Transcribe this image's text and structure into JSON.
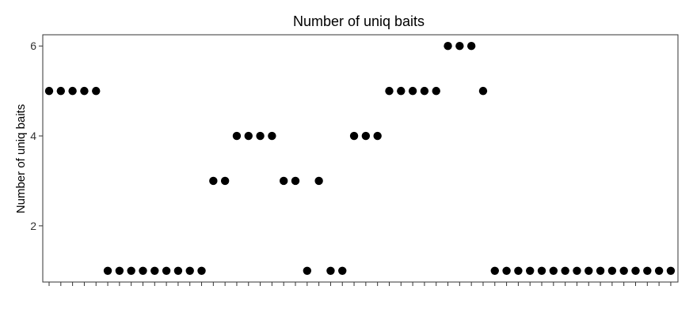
{
  "chart_data": {
    "type": "scatter",
    "title": "Number of uniq baits",
    "xlabel": "",
    "ylabel": "Number of uniq baits",
    "y_ticks": [
      2,
      4,
      6
    ],
    "y_tick_labels": [
      "2",
      "4",
      "6"
    ],
    "ylim": [
      0.75,
      6.25
    ],
    "grid": false,
    "legend": "none",
    "x_tick_labels_shown": false,
    "x": [
      1,
      2,
      3,
      4,
      5,
      6,
      7,
      8,
      9,
      10,
      11,
      12,
      13,
      14,
      15,
      16,
      17,
      18,
      19,
      20,
      21,
      22,
      23,
      24,
      25,
      26,
      27,
      28,
      29,
      30,
      31,
      32,
      33,
      34,
      35,
      36,
      37,
      38,
      39,
      40,
      41,
      42,
      43,
      44,
      45,
      46,
      47,
      48,
      49,
      50,
      51,
      52,
      53,
      54
    ],
    "values": [
      5,
      5,
      5,
      5,
      5,
      1,
      1,
      1,
      1,
      1,
      1,
      1,
      1,
      1,
      3,
      3,
      4,
      4,
      4,
      4,
      3,
      3,
      1,
      3,
      1,
      1,
      4,
      4,
      4,
      5,
      5,
      5,
      5,
      5,
      6,
      6,
      6,
      5,
      1,
      1,
      1,
      1,
      1,
      1,
      1,
      1,
      1,
      1,
      1,
      1,
      1,
      1,
      1,
      1
    ],
    "point_color": "#000000"
  }
}
